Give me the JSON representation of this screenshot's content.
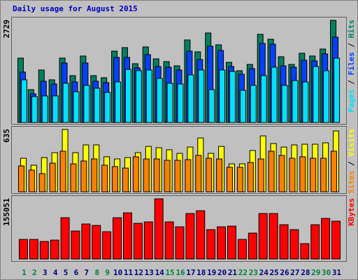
{
  "chart_data": [
    {
      "type": "bar",
      "title": "Daily usage for August 2015",
      "title_color": "#0000c0",
      "ylim": [
        0,
        2729
      ],
      "yticks": [
        2729
      ],
      "legend_separator": "/",
      "series": [
        {
          "name": "Hits",
          "color": "#008060",
          "values": [
            1720,
            878,
            1402,
            1140,
            1720,
            1252,
            1776,
            1252,
            1196,
            1906,
            2000,
            1570,
            2019,
            1701,
            1626,
            1514,
            2205,
            1888,
            2392,
            2075,
            1607,
            1383,
            1551,
            2355,
            2224,
            1757,
            1551,
            1850,
            1776,
            1963,
            2729
          ]
        },
        {
          "name": "Files",
          "color": "#0040ff",
          "values": [
            1346,
            766,
            1103,
            1028,
            1589,
            1084,
            1589,
            1103,
            1065,
            1738,
            1738,
            1458,
            1813,
            1495,
            1477,
            1402,
            1906,
            1682,
            2037,
            1925,
            1495,
            1290,
            1439,
            2112,
            2093,
            1514,
            1477,
            1663,
            1645,
            1832,
            2280
          ]
        },
        {
          "name": "Pages",
          "color": "#00e0ff",
          "values": [
            1140,
            692,
            710,
            710,
            1047,
            822,
            991,
            916,
            804,
            1084,
            1420,
            1383,
            1402,
            1177,
            1047,
            1028,
            1271,
            1402,
            878,
            1402,
            1364,
            860,
            991,
            1252,
            1477,
            991,
            1121,
            1084,
            1495,
            1383,
            1720
          ]
        }
      ]
    },
    {
      "type": "bar",
      "ylim": [
        0,
        635
      ],
      "yticks": [
        635
      ],
      "legend_separator": "/",
      "series": [
        {
          "name": "Visits",
          "color": "#ffff00",
          "values": [
            342,
            271,
            349,
            399,
            635,
            399,
            478,
            478,
            357,
            335,
            349,
            399,
            463,
            449,
            428,
            392,
            456,
            549,
            392,
            463,
            285,
            285,
            421,
            570,
            492,
            456,
            478,
            485,
            485,
            499,
            620
          ]
        },
        {
          "name": "Sites",
          "color": "#ff8000",
          "values": [
            264,
            221,
            185,
            292,
            414,
            285,
            314,
            335,
            271,
            257,
            242,
            357,
            335,
            335,
            321,
            321,
            328,
            371,
            342,
            335,
            250,
            250,
            299,
            335,
            414,
            371,
            342,
            357,
            342,
            342,
            414
          ]
        }
      ]
    },
    {
      "type": "bar",
      "ylim": [
        0,
        155051
      ],
      "yticks": [
        155051
      ],
      "categories": [
        "1",
        "2",
        "3",
        "4",
        "5",
        "6",
        "7",
        "8",
        "9",
        "10",
        "11",
        "12",
        "13",
        "14",
        "15",
        "16",
        "17",
        "18",
        "19",
        "20",
        "21",
        "22",
        "23",
        "24",
        "25",
        "26",
        "27",
        "28",
        "29",
        "30",
        "31"
      ],
      "category_colors": [
        "#008040",
        "#008040",
        "#000080",
        "#000080",
        "#000080",
        "#000080",
        "#000080",
        "#008040",
        "#008040",
        "#000080",
        "#000080",
        "#000080",
        "#000080",
        "#000080",
        "#008040",
        "#008040",
        "#000080",
        "#000080",
        "#000080",
        "#000080",
        "#000080",
        "#008040",
        "#008040",
        "#000080",
        "#000080",
        "#000080",
        "#000080",
        "#000080",
        "#008040",
        "#008040",
        "#000080"
      ],
      "series": [
        {
          "name": "KBytes",
          "color": "#ff0000",
          "values": [
            50484,
            50484,
            45075,
            48681,
            106377,
            72120,
            90150,
            86544,
            70317,
            106377,
            118998,
            91953,
            95559,
            155051,
            95559,
            82938,
            117195,
            124407,
            75726,
            82938,
            84741,
            50484,
            66711,
            117195,
            117195,
            88347,
            75726,
            39666,
            88347,
            104574,
            97362
          ]
        }
      ]
    }
  ]
}
